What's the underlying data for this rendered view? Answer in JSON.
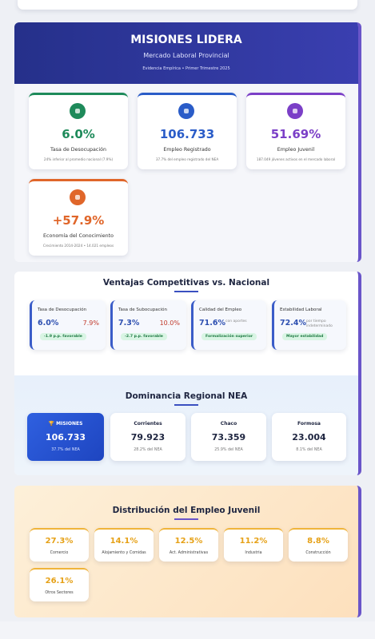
{
  "hero": {
    "title": "MISIONES LIDERA",
    "subtitle": "Mercado Laboral Provincial",
    "note": "Evidencia Empírica • Primer Trimestre 2025"
  },
  "kpis": [
    {
      "value": "6.0%",
      "label": "Tasa de Desocupación",
      "detail": "24% inferior al promedio nacional (7.9%)"
    },
    {
      "value": "106.733",
      "label": "Empleo Registrado",
      "detail": "37.7% del empleo registrado del NEA"
    },
    {
      "value": "51.69%",
      "label": "Empleo Juvenil",
      "detail": "187.049 jóvenes activos en el mercado laboral"
    },
    {
      "value": "+57.9%",
      "label": "Economía del Conocimiento",
      "detail": "Crecimiento 2014-2024 • 14.021 empleos"
    }
  ],
  "advantages": {
    "title": "Ventajas Competitivas vs. Nacional",
    "items": [
      {
        "label": "Tasa de Desocupación",
        "value": "6.0%",
        "national": "7.9%",
        "badge": "-1.9 p.p. favorable"
      },
      {
        "label": "Tasa de Subocupación",
        "value": "7.3%",
        "national": "10.0%",
        "badge": "-2.7 p.p. favorable"
      },
      {
        "label": "Calidad del Empleo",
        "value": "71.6%",
        "qualifier": "con aportes",
        "badge": "Formalización superior"
      },
      {
        "label": "Estabilidad Laboral",
        "value": "72.4%",
        "qualifier": "por tiempo indeterminado",
        "badge": "Mayor estabilidad"
      }
    ]
  },
  "regional": {
    "title": "Dominancia Regional NEA",
    "items": [
      {
        "name": "🏆 MISIONES",
        "value": "106.733",
        "share": "37.7% del NEA"
      },
      {
        "name": "Corrientes",
        "value": "79.923",
        "share": "28.2% del NEA"
      },
      {
        "name": "Chaco",
        "value": "73.359",
        "share": "25.9% del NEA"
      },
      {
        "name": "Formosa",
        "value": "23.004",
        "share": "8.1% del NEA"
      }
    ]
  },
  "youth": {
    "title": "Distribución del Empleo Juvenil",
    "items": [
      {
        "value": "27.3%",
        "sector": "Comercio"
      },
      {
        "value": "14.1%",
        "sector": "Alojamiento y Comidas"
      },
      {
        "value": "12.5%",
        "sector": "Act. Administrativas"
      },
      {
        "value": "11.2%",
        "sector": "Industria"
      },
      {
        "value": "8.8%",
        "sector": "Construcción"
      },
      {
        "value": "26.1%",
        "sector": "Otros Sectores"
      }
    ]
  }
}
